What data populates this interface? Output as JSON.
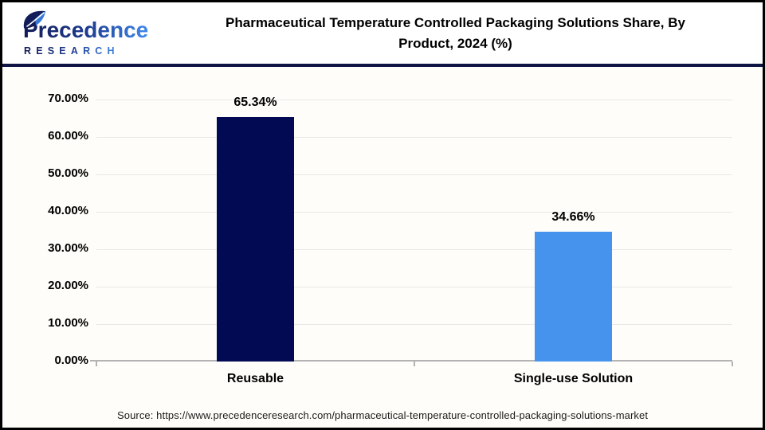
{
  "header": {
    "logo": {
      "line1": "Precedence",
      "line2": "RESEARCH"
    },
    "title_lines": [
      "Pharmaceutical Temperature Controlled Packaging Solutions Share, By",
      "Product, 2024 (%)"
    ]
  },
  "chart_data": {
    "type": "bar",
    "title": "Pharmaceutical Temperature Controlled Packaging Solutions Share, By Product, 2024 (%)",
    "categories": [
      "Reusable",
      "Single-use Solution"
    ],
    "values": [
      65.34,
      34.66
    ],
    "value_labels": [
      "65.34%",
      "34.66%"
    ],
    "bar_colors": [
      "#020a54",
      "#4593ec"
    ],
    "xlabel": "",
    "ylabel": "",
    "ylim": [
      0,
      70
    ],
    "ytick_step": 10,
    "ytick_labels": [
      "0.00%",
      "10.00%",
      "20.00%",
      "30.00%",
      "40.00%",
      "50.00%",
      "60.00%",
      "70.00%"
    ],
    "grid": true,
    "legend": "none"
  },
  "footer": {
    "source": "Source: https://www.precedenceresearch.com/pharmaceutical-temperature-controlled-packaging-solutions-market"
  },
  "colors": {
    "divider": "#0e1444",
    "grid": "#e9e9e9",
    "axis": "#b3b3b3",
    "logo_dark": "#121c58",
    "logo_mid": "#1d3a8f",
    "logo_light": "#3f8aeb"
  }
}
